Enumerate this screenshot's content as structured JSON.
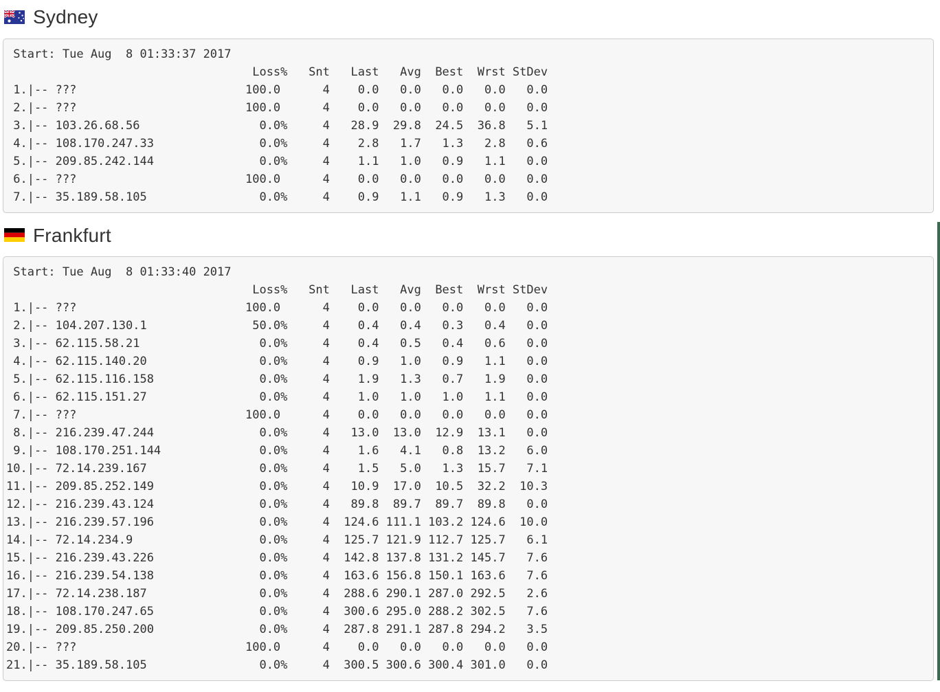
{
  "colors": {
    "box_background": "#f7f7f7",
    "box_border": "#cccccc",
    "text": "#333333",
    "heading": "#333333",
    "scrollbar_thumb": "#3b6a4f"
  },
  "sections": [
    {
      "city": "Sydney",
      "flag_icon": "australia-flag-icon",
      "start": "Start: Tue Aug  8 01:33:37 2017",
      "columns": [
        "Loss%",
        "Snt",
        "Last",
        "Avg",
        "Best",
        "Wrst",
        "StDev"
      ],
      "hops": [
        [
          "1",
          "???",
          "100.0",
          "4",
          "0.0",
          "0.0",
          "0.0",
          "0.0",
          "0.0"
        ],
        [
          "2",
          "???",
          "100.0",
          "4",
          "0.0",
          "0.0",
          "0.0",
          "0.0",
          "0.0"
        ],
        [
          "3",
          "103.26.68.56",
          "0.0%",
          "4",
          "28.9",
          "29.8",
          "24.5",
          "36.8",
          "5.1"
        ],
        [
          "4",
          "108.170.247.33",
          "0.0%",
          "4",
          "2.8",
          "1.7",
          "1.3",
          "2.8",
          "0.6"
        ],
        [
          "5",
          "209.85.242.144",
          "0.0%",
          "4",
          "1.1",
          "1.0",
          "0.9",
          "1.1",
          "0.0"
        ],
        [
          "6",
          "???",
          "100.0",
          "4",
          "0.0",
          "0.0",
          "0.0",
          "0.0",
          "0.0"
        ],
        [
          "7",
          "35.189.58.105",
          "0.0%",
          "4",
          "0.9",
          "1.1",
          "0.9",
          "1.3",
          "0.0"
        ]
      ]
    },
    {
      "city": "Frankfurt",
      "flag_icon": "germany-flag-icon",
      "start": "Start: Tue Aug  8 01:33:40 2017",
      "columns": [
        "Loss%",
        "Snt",
        "Last",
        "Avg",
        "Best",
        "Wrst",
        "StDev"
      ],
      "hops": [
        [
          "1",
          "???",
          "100.0",
          "4",
          "0.0",
          "0.0",
          "0.0",
          "0.0",
          "0.0"
        ],
        [
          "2",
          "104.207.130.1",
          "50.0%",
          "4",
          "0.4",
          "0.4",
          "0.3",
          "0.4",
          "0.0"
        ],
        [
          "3",
          "62.115.58.21",
          "0.0%",
          "4",
          "0.4",
          "0.5",
          "0.4",
          "0.6",
          "0.0"
        ],
        [
          "4",
          "62.115.140.20",
          "0.0%",
          "4",
          "0.9",
          "1.0",
          "0.9",
          "1.1",
          "0.0"
        ],
        [
          "5",
          "62.115.116.158",
          "0.0%",
          "4",
          "1.9",
          "1.3",
          "0.7",
          "1.9",
          "0.0"
        ],
        [
          "6",
          "62.115.151.27",
          "0.0%",
          "4",
          "1.0",
          "1.0",
          "1.0",
          "1.1",
          "0.0"
        ],
        [
          "7",
          "???",
          "100.0",
          "4",
          "0.0",
          "0.0",
          "0.0",
          "0.0",
          "0.0"
        ],
        [
          "8",
          "216.239.47.244",
          "0.0%",
          "4",
          "13.0",
          "13.0",
          "12.9",
          "13.1",
          "0.0"
        ],
        [
          "9",
          "108.170.251.144",
          "0.0%",
          "4",
          "1.6",
          "4.1",
          "0.8",
          "13.2",
          "6.0"
        ],
        [
          "10",
          "72.14.239.167",
          "0.0%",
          "4",
          "1.5",
          "5.0",
          "1.3",
          "15.7",
          "7.1"
        ],
        [
          "11",
          "209.85.252.149",
          "0.0%",
          "4",
          "10.9",
          "17.0",
          "10.5",
          "32.2",
          "10.3"
        ],
        [
          "12",
          "216.239.43.124",
          "0.0%",
          "4",
          "89.8",
          "89.7",
          "89.7",
          "89.8",
          "0.0"
        ],
        [
          "13",
          "216.239.57.196",
          "0.0%",
          "4",
          "124.6",
          "111.1",
          "103.2",
          "124.6",
          "10.0"
        ],
        [
          "14",
          "72.14.234.9",
          "0.0%",
          "4",
          "125.7",
          "121.9",
          "112.7",
          "125.7",
          "6.1"
        ],
        [
          "15",
          "216.239.43.226",
          "0.0%",
          "4",
          "142.8",
          "137.8",
          "131.2",
          "145.7",
          "7.6"
        ],
        [
          "16",
          "216.239.54.138",
          "0.0%",
          "4",
          "163.6",
          "156.8",
          "150.1",
          "163.6",
          "7.6"
        ],
        [
          "17",
          "72.14.238.187",
          "0.0%",
          "4",
          "288.6",
          "290.1",
          "287.0",
          "292.5",
          "2.6"
        ],
        [
          "18",
          "108.170.247.65",
          "0.0%",
          "4",
          "300.6",
          "295.0",
          "288.2",
          "302.5",
          "7.6"
        ],
        [
          "19",
          "209.85.250.200",
          "0.0%",
          "4",
          "287.8",
          "291.1",
          "287.8",
          "294.2",
          "3.5"
        ],
        [
          "20",
          "???",
          "100.0",
          "4",
          "0.0",
          "0.0",
          "0.0",
          "0.0",
          "0.0"
        ],
        [
          "21",
          "35.189.58.105",
          "0.0%",
          "4",
          "300.5",
          "300.6",
          "300.4",
          "301.0",
          "0.0"
        ]
      ]
    }
  ]
}
